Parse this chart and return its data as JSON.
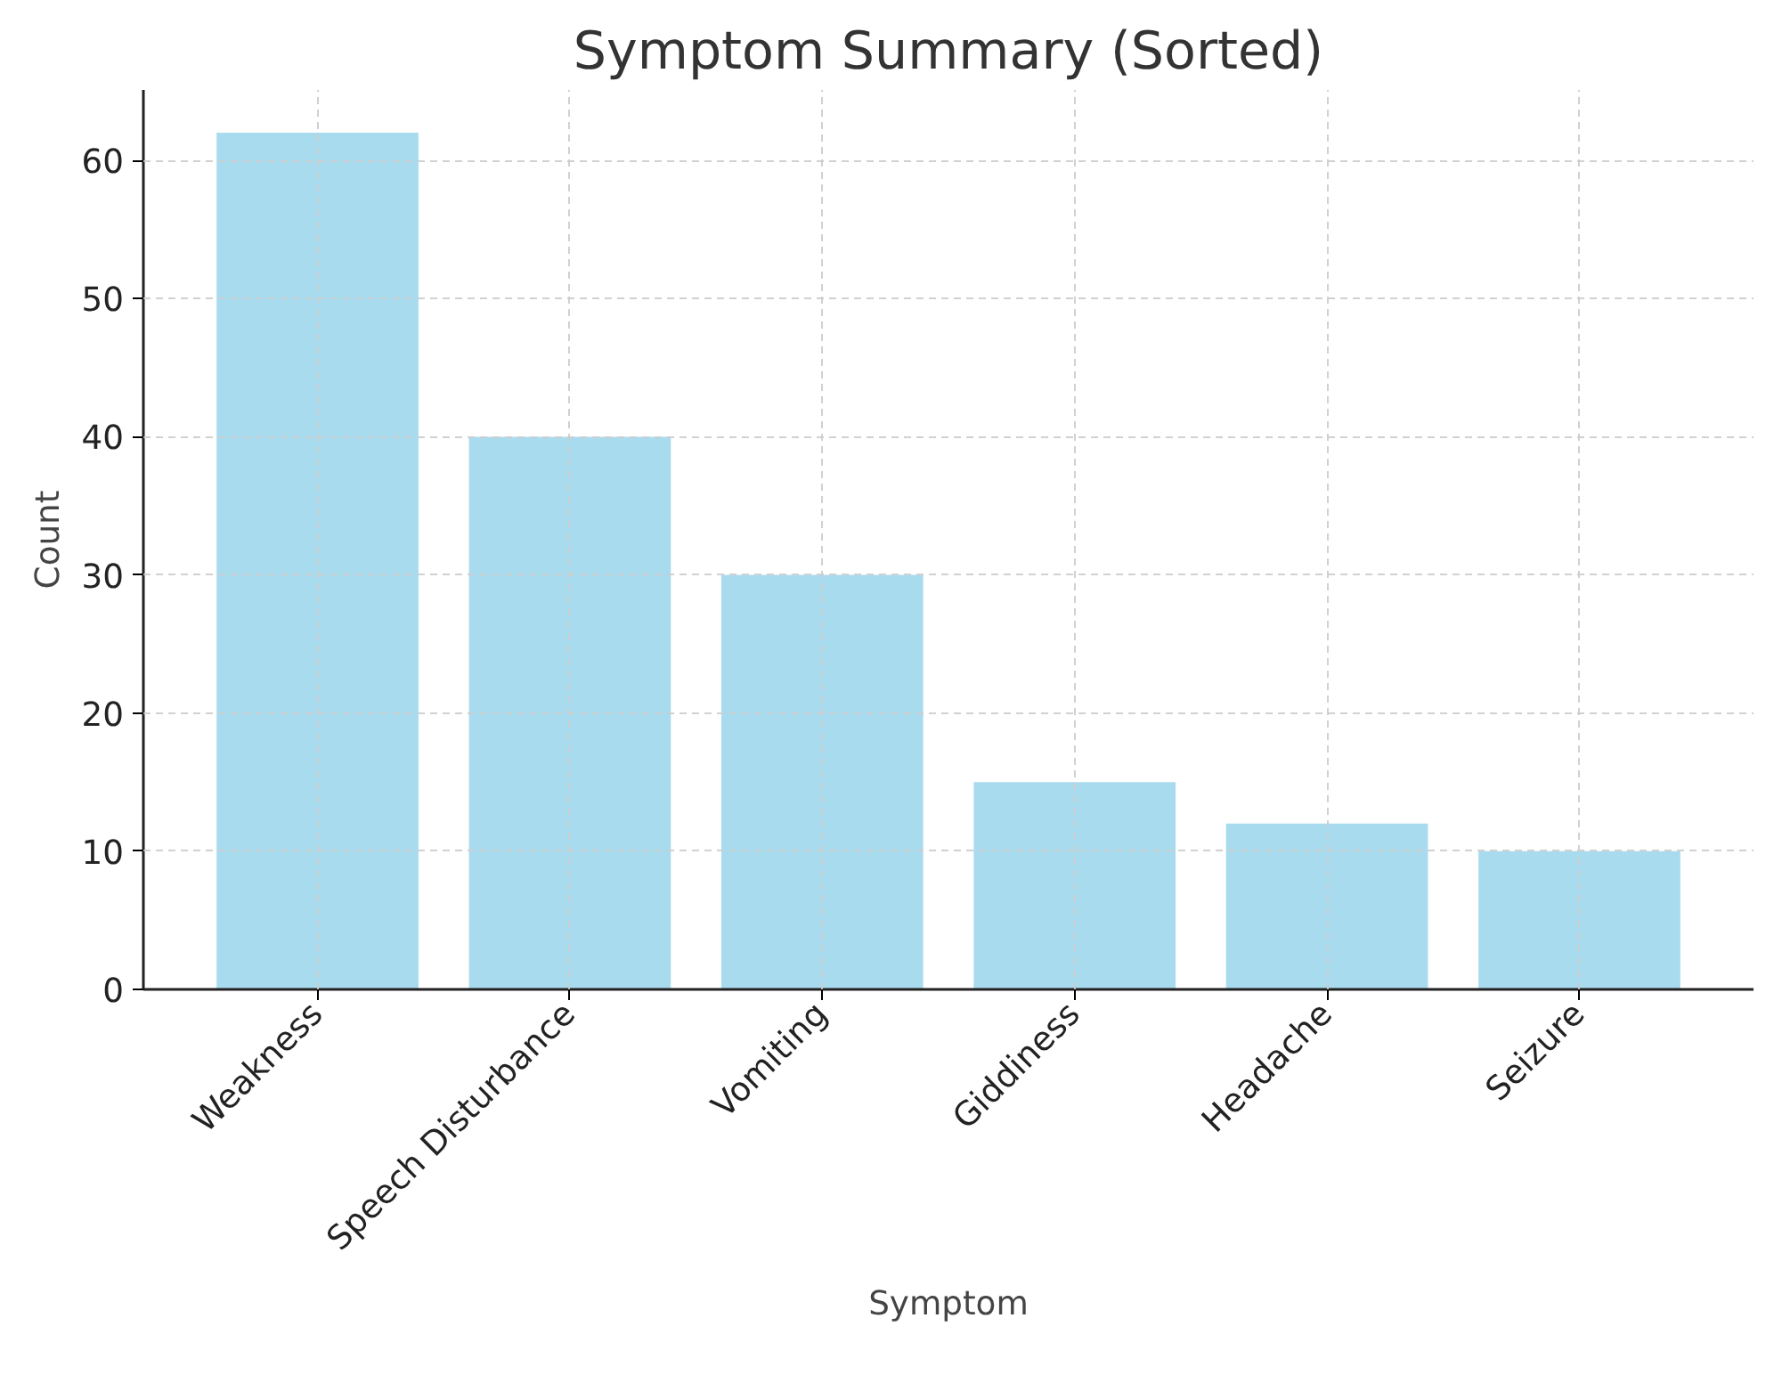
{
  "chart_data": {
    "type": "bar",
    "title": "Symptom Summary (Sorted)",
    "xlabel": "Symptom",
    "ylabel": "Count",
    "categories": [
      "Weakness",
      "Speech Disturbance",
      "Vomiting",
      "Giddiness",
      "Headache",
      "Seizure"
    ],
    "values": [
      62,
      40,
      30,
      15,
      12,
      10
    ],
    "color": "#a9dbef",
    "ylim": [
      0,
      65.1
    ],
    "yticks": [
      0,
      10,
      20,
      30,
      40,
      50,
      60
    ],
    "grid": true
  }
}
